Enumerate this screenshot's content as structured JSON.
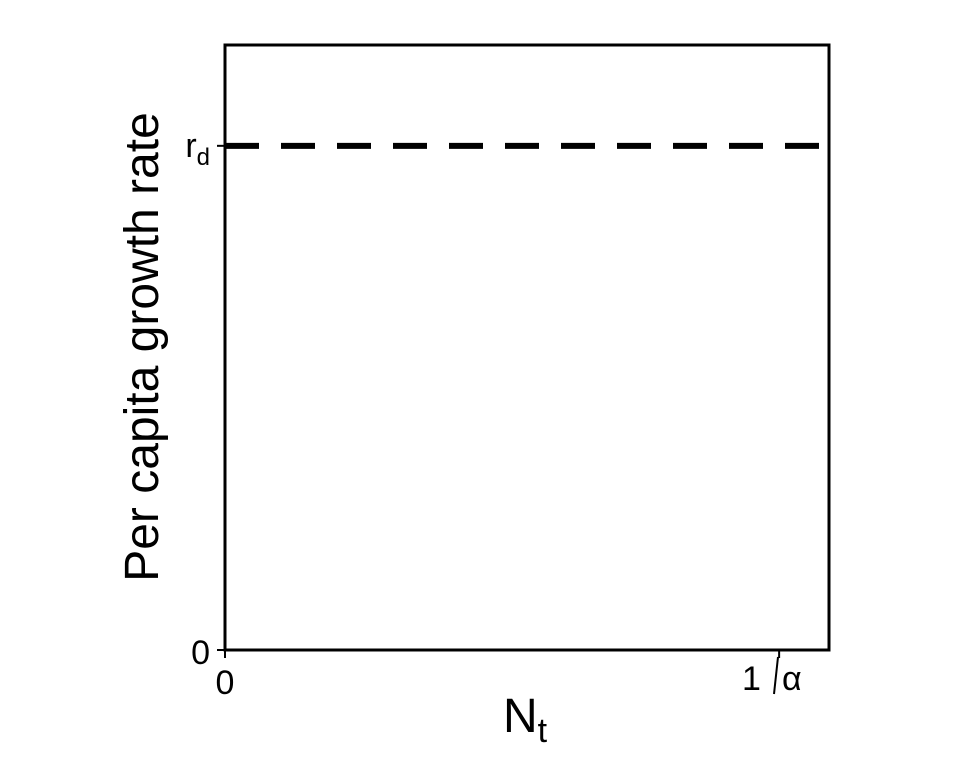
{
  "chart_data": {
    "type": "line",
    "title": "",
    "xlabel": "N",
    "xlabel_subscript": "t",
    "ylabel": "Per capita growth rate",
    "x_ticks": [
      {
        "value": 0,
        "label": "0"
      },
      {
        "value": 1,
        "label_parts": {
          "num": "1",
          "den": "α"
        }
      }
    ],
    "y_ticks": [
      {
        "value": 0,
        "label": "0"
      },
      {
        "value": 1,
        "label": "r",
        "label_subscript": "d"
      }
    ],
    "xlim": [
      0,
      1.09
    ],
    "ylim": [
      0,
      1.2
    ],
    "series": [
      {
        "x": [
          0,
          1.09
        ],
        "y": [
          1,
          1
        ],
        "line_style": "dashed",
        "color": "#000000"
      }
    ],
    "grid": false,
    "legend": "none"
  }
}
